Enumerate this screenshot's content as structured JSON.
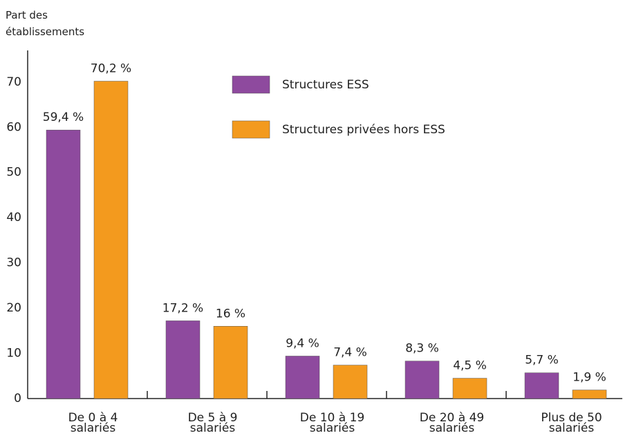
{
  "chart_data": {
    "type": "bar",
    "ylabel": "Part des établissements",
    "categories": [
      "De 0 à 4 salariés",
      "De 5 à 9 salariés",
      "De 10 à 19 salariés",
      "De 20 à 49 salariés",
      "Plus de 50 salariés"
    ],
    "series": [
      {
        "name": "Structures ESS",
        "color": "#8e4a9e",
        "values": [
          59.4,
          17.2,
          9.4,
          8.3,
          5.7
        ],
        "value_labels": [
          "59,4 %",
          "17,2 %",
          "9,4 %",
          "8,3 %",
          "5,7 %"
        ]
      },
      {
        "name": "Structures privées hors ESS",
        "color": "#f39a1e",
        "values": [
          70.2,
          16,
          7.4,
          4.5,
          1.9
        ],
        "value_labels": [
          "70,2 %",
          "16 %",
          "7,4 %",
          "4,5 %",
          "1,9 %"
        ]
      }
    ],
    "ylim": [
      0,
      77
    ],
    "yticks": [
      0,
      10,
      20,
      30,
      40,
      50,
      60,
      70
    ],
    "grid": false
  }
}
